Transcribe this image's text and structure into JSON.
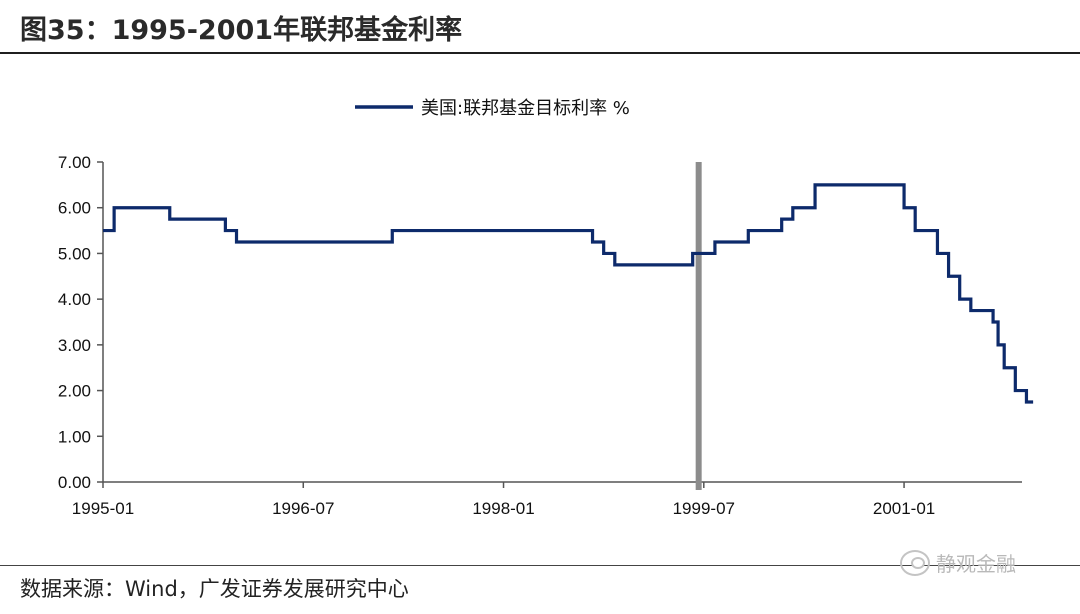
{
  "header": {
    "title": "图35：1995-2001年联邦基金利率"
  },
  "footer": {
    "source": "数据来源：Wind，广发证券发展研究中心",
    "watermark": "静观金融"
  },
  "colors": {
    "series": "#0d2a6b",
    "marker": "#8c8c8c",
    "axis": "#555555"
  },
  "chart_data": {
    "type": "line",
    "title": "",
    "xlabel": "",
    "ylabel": "",
    "legend": {
      "position": "top-center"
    },
    "grid": false,
    "ylim": [
      0,
      7
    ],
    "yticks": [
      "0.00",
      "1.00",
      "2.00",
      "3.00",
      "4.00",
      "5.00",
      "6.00",
      "7.00"
    ],
    "xlim": [
      "1995-01",
      "2001-09"
    ],
    "xticks": [
      "1995-01",
      "1996-07",
      "1998-01",
      "1999-07",
      "2001-01"
    ],
    "vertical_marker": {
      "x": "1999-06"
    },
    "series": [
      {
        "name": "美国:联邦基金目标利率 %",
        "step": true,
        "points": [
          [
            "1995-01",
            5.5
          ],
          [
            "1995-02",
            6.0
          ],
          [
            "1995-07",
            5.75
          ],
          [
            "1995-12",
            5.5
          ],
          [
            "1996-01",
            5.25
          ],
          [
            "1997-03",
            5.5
          ],
          [
            "1998-09",
            5.25
          ],
          [
            "1998-10",
            5.0
          ],
          [
            "1998-11",
            4.75
          ],
          [
            "1999-06",
            5.0
          ],
          [
            "1999-08",
            5.25
          ],
          [
            "1999-11",
            5.5
          ],
          [
            "2000-02",
            5.75
          ],
          [
            "2000-03",
            6.0
          ],
          [
            "2000-05",
            6.5
          ],
          [
            "2001-01",
            6.0
          ],
          [
            "2001-02",
            5.5
          ],
          [
            "2001-04",
            5.0
          ],
          [
            "2001-05",
            4.5
          ],
          [
            "2001-06",
            4.0
          ],
          [
            "2001-07",
            3.75
          ],
          [
            "2001-09",
            3.5
          ],
          [
            "2001-09b",
            3.0
          ],
          [
            "2001-10",
            2.5
          ],
          [
            "2001-11",
            2.0
          ],
          [
            "2001-12",
            1.75
          ],
          [
            "2001-12e",
            1.75
          ]
        ]
      }
    ]
  }
}
